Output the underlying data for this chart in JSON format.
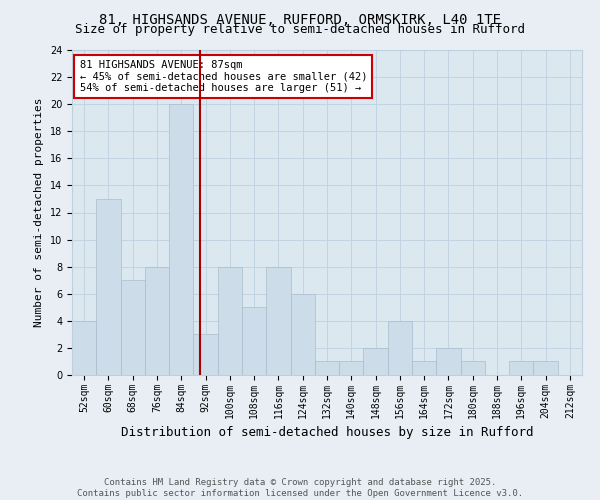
{
  "title": "81, HIGHSANDS AVENUE, RUFFORD, ORMSKIRK, L40 1TE",
  "subtitle": "Size of property relative to semi-detached houses in Rufford",
  "xlabel": "Distribution of semi-detached houses by size in Rufford",
  "ylabel": "Number of semi-detached properties",
  "bins": [
    "52sqm",
    "60sqm",
    "68sqm",
    "76sqm",
    "84sqm",
    "92sqm",
    "100sqm",
    "108sqm",
    "116sqm",
    "124sqm",
    "132sqm",
    "140sqm",
    "148sqm",
    "156sqm",
    "164sqm",
    "172sqm",
    "180sqm",
    "188sqm",
    "196sqm",
    "204sqm",
    "212sqm"
  ],
  "values": [
    4,
    13,
    7,
    8,
    20,
    3,
    8,
    5,
    8,
    6,
    1,
    1,
    2,
    4,
    1,
    2,
    1,
    0,
    1,
    1,
    0
  ],
  "bar_color": "#ccdce8",
  "bar_edgecolor": "#aabccc",
  "property_line_x": 4.75,
  "property_line_color": "#aa0000",
  "annotation_text": "81 HIGHSANDS AVENUE: 87sqm\n← 45% of semi-detached houses are smaller (42)\n54% of semi-detached houses are larger (51) →",
  "annotation_box_color": "#cc0000",
  "annotation_textcolor": "#000000",
  "ylim": [
    0,
    24
  ],
  "yticks": [
    0,
    2,
    4,
    6,
    8,
    10,
    12,
    14,
    16,
    18,
    20,
    22,
    24
  ],
  "grid_color": "#bdd0e0",
  "background_color": "#dce8f0",
  "fig_background": "#e8eef4",
  "footer": "Contains HM Land Registry data © Crown copyright and database right 2025.\nContains public sector information licensed under the Open Government Licence v3.0.",
  "title_fontsize": 10,
  "subtitle_fontsize": 9,
  "xlabel_fontsize": 9,
  "ylabel_fontsize": 8,
  "tick_fontsize": 7,
  "footer_fontsize": 6.5
}
